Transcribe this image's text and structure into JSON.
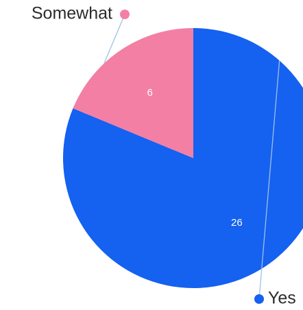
{
  "chart_data": {
    "type": "pie",
    "title": "",
    "start": "12 o'clock",
    "direction": "clockwise",
    "slices": [
      {
        "name": "Yes",
        "value": 26,
        "color": "#1561f0"
      },
      {
        "name": "Somewhat",
        "value": 6,
        "color": "#f37fa4"
      }
    ],
    "legend_placement": "callouts outside the pie (top-left for Somewhat, bottom-right for Yes)",
    "leader_line_color": "#9ec1e6",
    "background": "#ffffff"
  }
}
